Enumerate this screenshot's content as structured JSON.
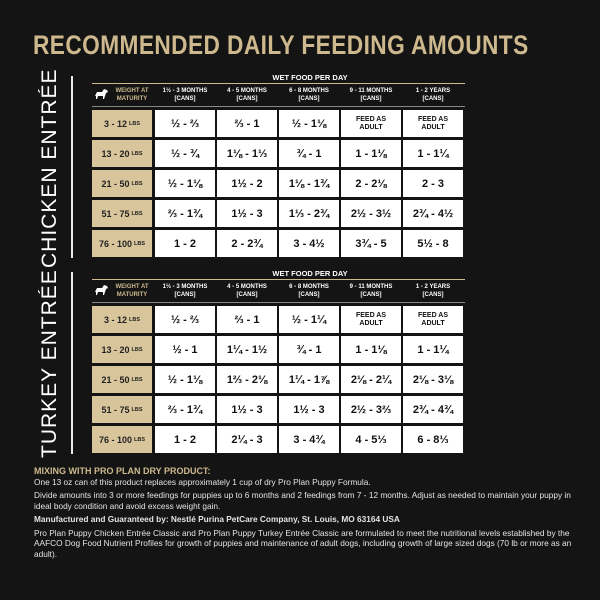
{
  "title": "RECOMMENDED DAILY FEEDING AMOUNTS",
  "sections": [
    {
      "name": "CHICKEN ENTRÉE",
      "table": {
        "caption": "WET FOOD PER DAY",
        "weight_header": "WEIGHT AT MATURITY",
        "columns": [
          {
            "label": "1½ - 3 MONTHS",
            "unit": "[CANS]"
          },
          {
            "label": "4 - 5 MONTHS",
            "unit": "[CANS]"
          },
          {
            "label": "6 - 8 MONTHS",
            "unit": "[CANS]"
          },
          {
            "label": "9 - 11 MONTHS",
            "unit": "[CANS]"
          },
          {
            "label": "1 - 2 YEARS",
            "unit": "[CANS]"
          }
        ],
        "rows": [
          {
            "weight": "3 - 12",
            "unit": "LBS",
            "cells": [
              "½ - ⅔",
              "⅔ - 1",
              "½ - 1⅛",
              "FEED AS ADULT",
              "FEED AS ADULT"
            ]
          },
          {
            "weight": "13 - 20",
            "unit": "LBS",
            "cells": [
              "½ - ¾",
              "1⅛ - 1⅓",
              "¾ - 1",
              "1 - 1⅛",
              "1 - 1¼"
            ]
          },
          {
            "weight": "21 - 50",
            "unit": "LBS",
            "cells": [
              "½ - 1⅛",
              "1½ - 2",
              "1⅛ - 1¾",
              "2 - 2⅛",
              "2 - 3"
            ]
          },
          {
            "weight": "51 - 75",
            "unit": "LBS",
            "cells": [
              "⅔ - 1¾",
              "1½ - 3",
              "1⅓ - 2¾",
              "2½ - 3½",
              "2¾ - 4½"
            ]
          },
          {
            "weight": "76 - 100",
            "unit": "LBS",
            "cells": [
              "1 - 2",
              "2 - 2¾",
              "3 - 4½",
              "3¾ - 5",
              "5½ - 8"
            ]
          }
        ]
      }
    },
    {
      "name": "TURKEY ENTRÉE",
      "table": {
        "caption": "WET FOOD PER DAY",
        "weight_header": "WEIGHT AT MATURITY",
        "columns": [
          {
            "label": "1½ - 3 MONTHS",
            "unit": "[CANS]"
          },
          {
            "label": "4 - 5 MONTHS",
            "unit": "[CANS]"
          },
          {
            "label": "6 - 8 MONTHS",
            "unit": "[CANS]"
          },
          {
            "label": "9 - 11 MONTHS",
            "unit": "[CANS]"
          },
          {
            "label": "1 - 2 YEARS",
            "unit": "[CANS]"
          }
        ],
        "rows": [
          {
            "weight": "3 - 12",
            "unit": "LBS",
            "cells": [
              "½ - ⅔",
              "⅔ - 1",
              "½ - 1¼",
              "FEED AS ADULT",
              "FEED AS ADULT"
            ]
          },
          {
            "weight": "13 - 20",
            "unit": "LBS",
            "cells": [
              "½ - 1",
              "1¼ - 1½",
              "¾ - 1",
              "1 - 1⅛",
              "1 - 1¼"
            ]
          },
          {
            "weight": "21 - 50",
            "unit": "LBS",
            "cells": [
              "½ - 1⅛",
              "1⅔ - 2⅛",
              "1¼ - 1⅞",
              "2⅛ - 2¼",
              "2⅛ - 3⅛"
            ]
          },
          {
            "weight": "51 - 75",
            "unit": "LBS",
            "cells": [
              "⅔ - 1¾",
              "1½ - 3",
              "1½ - 3",
              "2½ - 3⅔",
              "2¾ - 4¾"
            ]
          },
          {
            "weight": "76 - 100",
            "unit": "LBS",
            "cells": [
              "1 - 2",
              "2¼ - 3",
              "3 - 4¾",
              "4 - 5⅓",
              "6 - 8⅓"
            ]
          }
        ]
      }
    }
  ],
  "footer": {
    "heading": "MIXING WITH PRO PLAN DRY PRODUCT:",
    "paragraphs": [
      "One 13 oz can of this product replaces approximately 1 cup of dry Pro Plan Puppy Formula.",
      "Divide amounts into 3 or more feedings for puppies up to 6 months and 2 feedings from 7 - 12 months. Adjust as needed to maintain your puppy in ideal body condition and avoid excess weight gain.",
      "Manufactured and Guaranteed by: Nestlé Purina PetCare Company, St. Louis, MO 63164 USA",
      "Pro Plan Puppy Chicken Entrée Classic and  Pro Plan Puppy Turkey Entrée Classic are formulated to meet the nutritional levels established by the AAFCO Dog Food Nutrient Profiles for growth of puppies and maintenance of adult dogs, including growth of large sized dogs (70 lb or more as an adult)."
    ]
  }
}
